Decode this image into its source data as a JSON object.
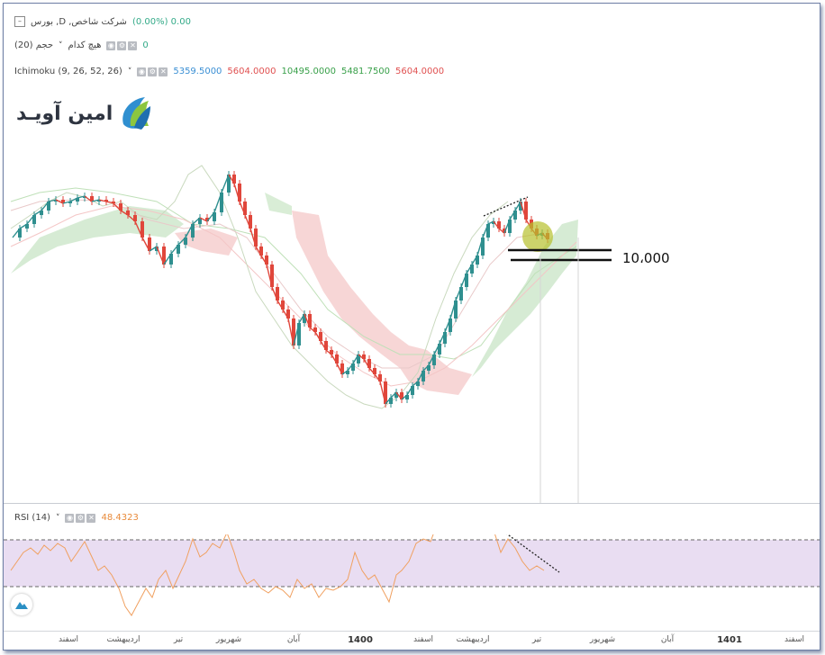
{
  "header": {
    "symbol": "بورس ,D ,شرکت شاخص",
    "change": "(0.00%) 0.00"
  },
  "volume": {
    "label": "حجم (20)",
    "subLabel": "هیچ کدام",
    "value": "0"
  },
  "ichimoku": {
    "label": "Ichimoku (9, 26, 52, 26)",
    "v1": "5359.5000",
    "v2": "5604.0000",
    "v3": "10495.0000",
    "v4": "5481.7500",
    "v5": "5604.0000"
  },
  "logo": {
    "text": "امین آویـد"
  },
  "annotation": {
    "level": "10،000"
  },
  "rsi": {
    "label": "RSI (14)",
    "value": "48.4323"
  },
  "axis": {
    "ticks": [
      "اسفند",
      "اردیبهشت",
      "تیر",
      "شهریور",
      "آبان",
      "1400",
      "اسفند",
      "اردیبهشت",
      "تیر",
      "شهریور",
      "آبان",
      "1401",
      "اسفند"
    ]
  },
  "colors": {
    "up": "#2f8f8f",
    "down": "#e0463b",
    "rsi_line": "#f0a060",
    "rsi_band": "#e9ddf2",
    "cloud_green": "#cfe8cc",
    "cloud_red": "#f6d2d2",
    "highlight": "#b6c12c"
  }
}
